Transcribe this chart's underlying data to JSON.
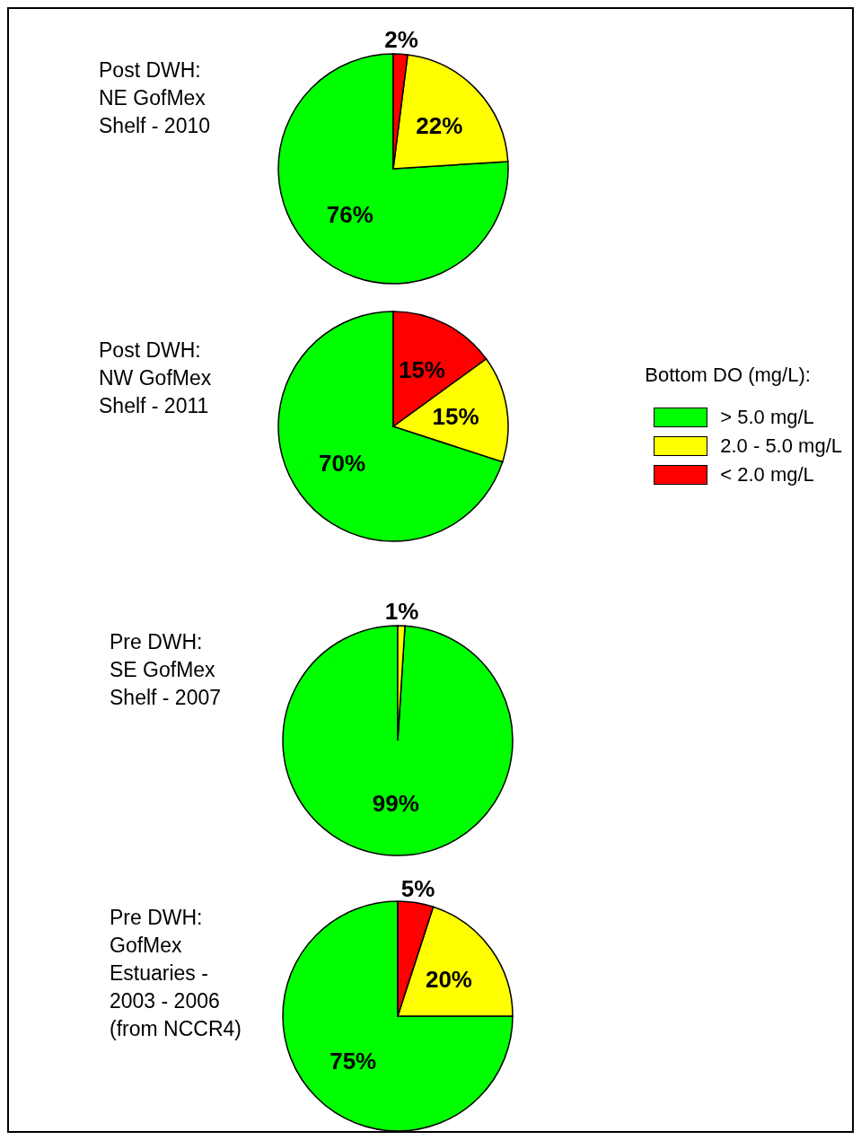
{
  "chart_data": [
    {
      "type": "pie",
      "title": "Post DWH:\nNE GofMex\nShelf - 2010",
      "categories": [
        null,
        null,
        null
      ],
      "values": [
        76,
        22,
        2
      ],
      "colors": [
        "#00ff00",
        "#ffff00",
        "#ff0000"
      ],
      "value_labels": [
        "76%",
        "22%",
        "2%"
      ]
    },
    {
      "type": "pie",
      "title": "Post DWH:\nNW GofMex\nShelf - 2011",
      "categories": [
        "> 5.0 mg/L",
        "2.0 - 5.0 mg/L",
        "< 2.0 mg/L"
      ],
      "values": [
        70,
        15,
        15
      ],
      "colors": [
        "#00ff00",
        "#ffff00",
        "#ff0000"
      ],
      "value_labels": [
        "70%",
        "15%",
        "15%"
      ],
      "legend": "right",
      "legend_title": "Bottom DO (mg/L):"
    },
    {
      "type": "pie",
      "title": "Pre DWH:\nSE GofMex\nShelf - 2007",
      "categories": [
        null,
        null
      ],
      "values": [
        99,
        1
      ],
      "colors": [
        "#00ff00",
        "#ffff00"
      ],
      "value_labels": [
        "99%",
        "1%"
      ]
    },
    {
      "type": "pie",
      "title": "Pre DWH:\nGofMex\nEstuaries -\n2003 - 2006\n(from NCCR4)",
      "categories": [
        null,
        null,
        null
      ],
      "values": [
        75,
        20,
        5
      ],
      "colors": [
        "#00ff00",
        "#ffff00",
        "#ff0000"
      ],
      "value_labels": [
        "75%",
        "20%",
        "5%"
      ]
    }
  ]
}
